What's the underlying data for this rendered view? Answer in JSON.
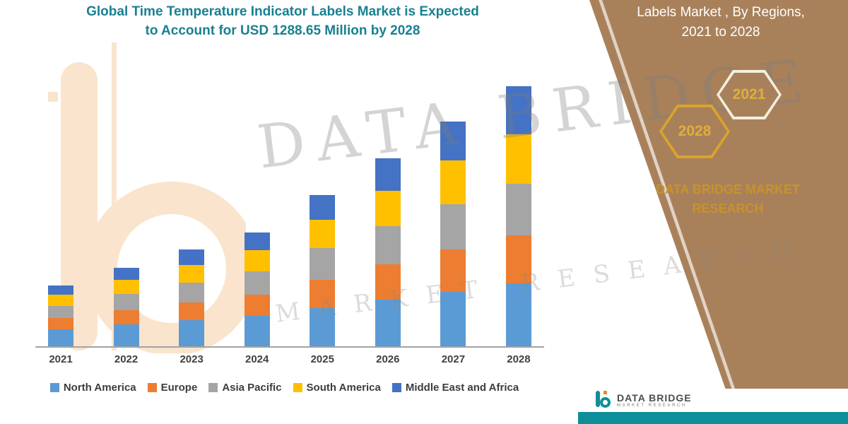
{
  "title": {
    "line1": "Global Time Temperature Indicator Labels Market is Expected",
    "line2": "to Account for USD 1288.65 Million by 2028"
  },
  "panel": {
    "heading_line1": "Labels Market , By Regions,",
    "heading_line2": "2021 to 2028",
    "hex_2021": "2021",
    "hex_2028": "2028",
    "brand_line1": "DATA BRIDGE MARKET",
    "brand_line2": "RESEARCH",
    "panel_color": "#A8815B",
    "gold_color": "#D9A42B"
  },
  "watermark": {
    "line1": "DATA BRIDGE",
    "line2": "MARKET RESEARCH"
  },
  "footer": {
    "logo_text": "DATA BRIDGE",
    "logo_sub": "MARKET RESEARCH",
    "teal_color": "#0E8E99"
  },
  "chart_data": {
    "type": "bar",
    "subtype": "stacked",
    "title": "Global Time Temperature Indicator Labels Market is Expected to Account for USD 1288.65 Million by 2028",
    "unit": "USD Million",
    "categories": [
      "2021",
      "2022",
      "2023",
      "2024",
      "2025",
      "2026",
      "2027",
      "2028"
    ],
    "series": [
      {
        "name": "North America",
        "color": "#5B9BD5",
        "values": [
          85,
          108,
          130,
          150,
          190,
          230,
          270,
          310
        ]
      },
      {
        "name": "Europe",
        "color": "#ED7D31",
        "values": [
          55,
          72,
          88,
          105,
          140,
          175,
          210,
          240
        ]
      },
      {
        "name": "Asia Pacific",
        "color": "#A5A5A5",
        "values": [
          60,
          78,
          98,
          115,
          155,
          190,
          225,
          255
        ]
      },
      {
        "name": "South America",
        "color": "#FFC000",
        "values": [
          55,
          72,
          88,
          105,
          140,
          175,
          215,
          245
        ]
      },
      {
        "name": "Middle East and Africa",
        "color": "#4472C4",
        "values": [
          45,
          60,
          76,
          90,
          125,
          160,
          195,
          238.65
        ]
      }
    ],
    "totals": [
      300,
      390,
      480,
      565,
      750,
      930,
      1115,
      1288.65
    ],
    "ylim": [
      0,
      1400
    ],
    "grid": false,
    "legend_position": "bottom"
  }
}
